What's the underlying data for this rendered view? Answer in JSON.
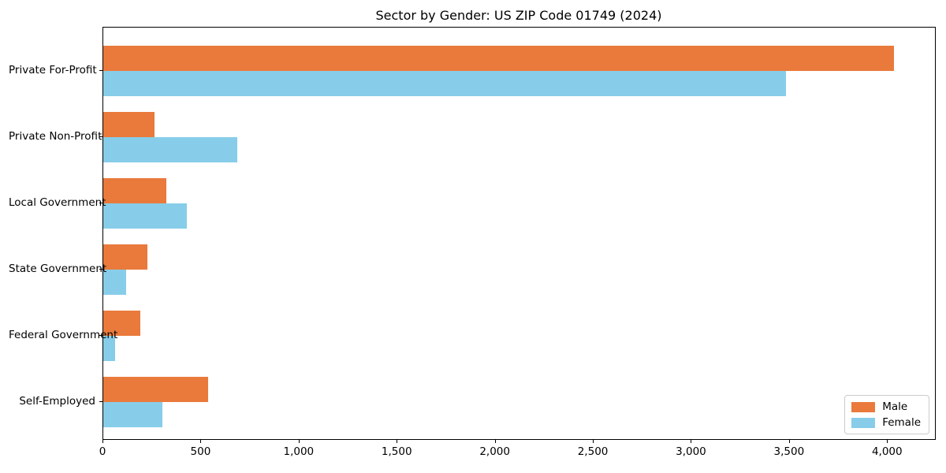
{
  "title": "Sector by Gender: US ZIP Code 01749 (2024)",
  "chart_data": {
    "type": "bar",
    "orientation": "horizontal",
    "title": "Sector by Gender: US ZIP Code 01749 (2024)",
    "xlabel": "",
    "ylabel": "",
    "categories": [
      "Private For-Profit",
      "Private Non-Profit",
      "Local Government",
      "State Government",
      "Federal Government",
      "Self-Employed"
    ],
    "series": [
      {
        "name": "Male",
        "color": "#e97a3c",
        "values": [
          4030,
          260,
          320,
          225,
          190,
          535
        ]
      },
      {
        "name": "Female",
        "color": "#87cde9",
        "values": [
          3480,
          685,
          425,
          115,
          60,
          300
        ]
      }
    ],
    "xlim": [
      0,
      4240
    ],
    "x_ticks": [
      0,
      500,
      1000,
      1500,
      2000,
      2500,
      3000,
      3500,
      4000
    ],
    "x_tick_labels": [
      "0",
      "500",
      "1,000",
      "1,500",
      "2,000",
      "2,500",
      "3,000",
      "3,500",
      "4,000"
    ],
    "grid": false,
    "legend_position": "lower right"
  },
  "legend": {
    "items": [
      {
        "label": "Male",
        "color": "#e97a3c"
      },
      {
        "label": "Female",
        "color": "#87cde9"
      }
    ]
  }
}
